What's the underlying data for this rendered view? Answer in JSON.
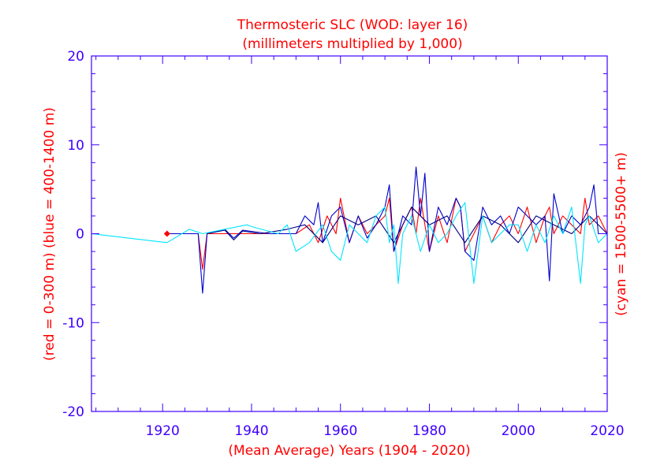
{
  "chart_data": {
    "type": "line",
    "title": "Thermosteric SLC (WOD: layer 16)",
    "subtitle": "(millimeters multiplied by 1,000)",
    "xlabel": "(Mean Average) Years (1904 - 2020)",
    "ylabel_left": "(red = 0-300 m)  (blue = 400-1400 m)",
    "ylabel_right": "(cyan = 1500-5500+ m)",
    "xlim": [
      1904,
      2020
    ],
    "ylim": [
      -20,
      20
    ],
    "x_ticks": [
      1920,
      1940,
      1960,
      1980,
      2000,
      2020
    ],
    "y_ticks": [
      -20,
      -10,
      0,
      10,
      20
    ],
    "x_tick_labels": [
      "1920",
      "1940",
      "1960",
      "1980",
      "2000",
      "2020"
    ],
    "y_tick_labels": [
      "-20",
      "-10",
      "0",
      "10",
      "20"
    ],
    "colors": {
      "red": "#ff0000",
      "blue": "#0000cc",
      "navy": "#000080",
      "cyan": "#00e5ff",
      "axis": "#4000ff"
    },
    "series": [
      {
        "name": "red (0-300 m)",
        "color": "#ff0000",
        "x": [
          1921,
          1928,
          1929,
          1930,
          1950,
          1953,
          1955,
          1957,
          1959,
          1960,
          1962,
          1964,
          1966,
          1968,
          1970,
          1971,
          1972,
          1974,
          1976,
          1977,
          1978,
          1979,
          1980,
          1982,
          1984,
          1986,
          1987,
          1988,
          1990,
          1992,
          1994,
          1996,
          1998,
          2000,
          2002,
          2004,
          2006,
          2007,
          2008,
          2010,
          2012,
          2014,
          2015,
          2016,
          2018,
          2020
        ],
        "y": [
          0,
          0,
          -4,
          0,
          0,
          1,
          -1,
          2,
          0,
          4,
          -1,
          2,
          0,
          1,
          2,
          4,
          -2,
          1,
          3,
          0,
          4,
          1,
          -2,
          2,
          -1,
          4,
          3,
          -2,
          0,
          2,
          -1,
          1,
          2,
          0,
          3,
          -1,
          2,
          3,
          0,
          2,
          1,
          0,
          4,
          1,
          2,
          0
        ]
      },
      {
        "name": "blue (400-1400 m)",
        "color": "#0000cc",
        "x": [
          1921,
          1928,
          1929,
          1930,
          1934,
          1936,
          1938,
          1944,
          1950,
          1952,
          1954,
          1955,
          1956,
          1958,
          1960,
          1962,
          1964,
          1966,
          1968,
          1970,
          1971,
          1972,
          1974,
          1976,
          1977,
          1978,
          1979,
          1980,
          1982,
          1984,
          1986,
          1987,
          1988,
          1990,
          1992,
          1994,
          1996,
          1998,
          2000,
          2002,
          2004,
          2006,
          2007,
          2008,
          2010,
          2012,
          2014,
          2016,
          2017,
          2018,
          2020
        ],
        "y": [
          0,
          0,
          -6.7,
          0,
          0.5,
          -0.5,
          0.4,
          0,
          0,
          2,
          1,
          3.5,
          -1,
          2,
          3,
          -1,
          2,
          -0.5,
          1,
          3,
          5.5,
          -2,
          2,
          1,
          7.5,
          2,
          6.8,
          -2,
          3,
          1,
          4,
          3,
          -2,
          -3,
          3,
          1,
          2,
          0,
          3,
          2,
          1,
          2,
          -5.3,
          4.5,
          0,
          2,
          1,
          3,
          5.5,
          0,
          0
        ]
      },
      {
        "name": "navy (400-1400 m)",
        "color": "#000080",
        "x": [
          1930,
          1934,
          1936,
          1938,
          1942,
          1948,
          1952,
          1956,
          1960,
          1964,
          1968,
          1972,
          1976,
          1980,
          1984,
          1988,
          1992,
          1996,
          2000,
          2004,
          2008,
          2012,
          2016,
          2020
        ],
        "y": [
          0,
          0.4,
          -0.7,
          0.3,
          0,
          0.5,
          1,
          -1,
          2,
          1,
          2,
          -1,
          3,
          1,
          2,
          -1,
          2,
          1,
          -1,
          2,
          1,
          0,
          2,
          0
        ]
      },
      {
        "name": "cyan (1500-5500+ m)",
        "color": "#00e5ff",
        "x": [
          1904,
          1921,
          1926,
          1929,
          1939,
          1940,
          1946,
          1948,
          1950,
          1953,
          1956,
          1958,
          1960,
          1962,
          1964,
          1966,
          1968,
          1970,
          1971,
          1972,
          1973,
          1974,
          1976,
          1978,
          1980,
          1982,
          1984,
          1986,
          1988,
          1990,
          1992,
          1994,
          1996,
          1998,
          2000,
          2002,
          2004,
          2006,
          2008,
          2010,
          2012,
          2014,
          2015,
          2016,
          2018,
          2020
        ],
        "y": [
          0,
          -1,
          0.5,
          0,
          1,
          0.8,
          0,
          1,
          -2,
          -1,
          1,
          -2,
          -3,
          1,
          0,
          -1,
          2,
          3,
          -1,
          1,
          -5.6,
          0,
          2,
          -2,
          1,
          -1,
          0,
          2,
          3.5,
          -5.6,
          2,
          -1,
          0,
          1,
          1,
          -2,
          1,
          -1,
          2,
          0,
          3,
          -5.6,
          1,
          2,
          -1,
          0
        ]
      }
    ],
    "markers": [
      {
        "x": 1921,
        "y": 0,
        "color": "#ff0000",
        "shape": "diamond"
      }
    ]
  }
}
